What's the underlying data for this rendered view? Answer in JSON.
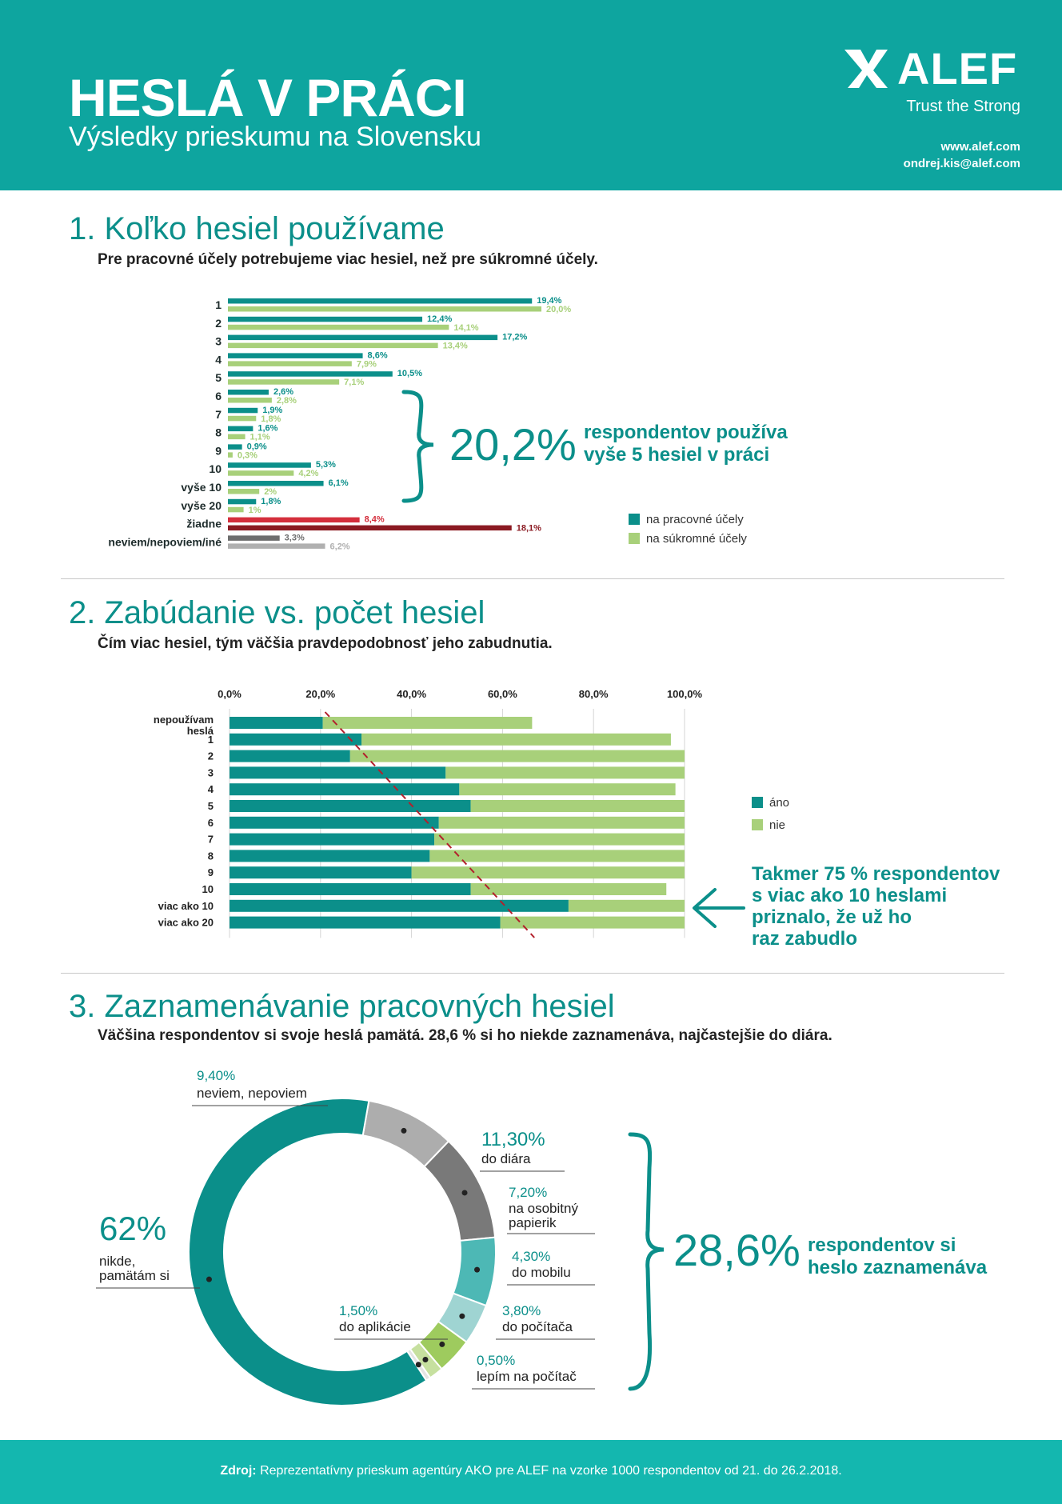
{
  "header": {
    "title": "HESLÁ V PRÁCI",
    "subtitle": "Výsledky prieskumu na Slovensku",
    "logo_text": "ALEF",
    "tagline": "Trust the Strong",
    "web": "www.alef.com",
    "email": "ondrej.kis@alef.com"
  },
  "section1": {
    "title": "1. Koľko hesiel používame",
    "subtitle": "Pre pracovné účely potrebujeme viac hesiel, než pre súkromné účely.",
    "callout_value": "20,2%",
    "callout_line1": "respondentov používa",
    "callout_line2": "vyše 5 hesiel v práci"
  },
  "section2": {
    "title": "2. Zabúdanie vs. počet hesiel",
    "subtitle": "Čím viac hesiel, tým väčšia pravdepodobnosť jeho zabudnutia.",
    "callout_lines": [
      "Takmer 75 % respondentov",
      "s viac ako 10 heslami",
      "priznalo, že už ho",
      "raz zabudlo"
    ]
  },
  "section3": {
    "title": "3. Zaznamenávanie pracovných hesiel",
    "subtitle": "Väčšina respondentov si svoje heslá pamätá. 28,6 % si ho niekde zaznamenáva, najčastejšie do diára.",
    "callout_value": "28,6%",
    "callout_line1": "respondentov si",
    "callout_line2": "heslo zaznamenáva"
  },
  "footer": {
    "label": "Zdroj:",
    "text": "Reprezentatívny prieskum agentúry AKO pre ALEF na vzorke 1000 respondentov od 21. do 26.2.2018."
  },
  "colors": {
    "teal": "#0b8f8a",
    "light_green": "#a8d07a",
    "red": "#d42e3c",
    "dark_red": "#8b1a22",
    "gray": "#6e6e6e",
    "light_gray": "#b0b0b0",
    "header": "#0ea59f"
  },
  "chart_data": [
    {
      "type": "bar",
      "orientation": "horizontal",
      "categories": [
        "1",
        "2",
        "3",
        "4",
        "5",
        "6",
        "7",
        "8",
        "9",
        "10",
        "vyše 10",
        "vyše 20",
        "žiadne",
        "neviem/nepoviem/iné"
      ],
      "series": [
        {
          "name": "na pracovné účely",
          "values": [
            19.4,
            12.4,
            17.2,
            8.6,
            10.5,
            2.6,
            1.9,
            1.6,
            0.9,
            5.3,
            6.1,
            1.8,
            8.4,
            3.3
          ],
          "labels": [
            "19,4%",
            "12,4%",
            "17,2%",
            "8,6%",
            "10,5%",
            "2,6%",
            "1,9%",
            "1,6%",
            "0,9%",
            "5,3%",
            "6,1%",
            "1,8%",
            "8,4%",
            "3,3%"
          ]
        },
        {
          "name": "na súkromné účely",
          "values": [
            20.0,
            14.1,
            13.4,
            7.9,
            7.1,
            2.8,
            1.8,
            1.1,
            0.3,
            4.2,
            2.0,
            1.0,
            18.1,
            6.2
          ],
          "labels": [
            "20,0%",
            "14,1%",
            "13,4%",
            "7,9%",
            "7,1%",
            "2,8%",
            "1,8%",
            "1,1%",
            "0,3%",
            "4,2%",
            "2%",
            "1%",
            "18,1%",
            "6,2%"
          ]
        }
      ],
      "legend": "bottom-right"
    },
    {
      "type": "bar",
      "orientation": "horizontal",
      "stacked": true,
      "categories": [
        "nepoužívam heslá",
        "1",
        "2",
        "3",
        "4",
        "5",
        "6",
        "7",
        "8",
        "9",
        "10",
        "viac ako 10",
        "viac ako 20"
      ],
      "series": [
        {
          "name": "áno",
          "values": [
            20.5,
            29,
            26.5,
            47.5,
            50.5,
            53,
            46,
            45,
            44,
            40,
            53,
            74.5,
            59.5
          ]
        },
        {
          "name": "nie",
          "values": [
            46,
            68,
            73.5,
            52.5,
            47.5,
            47,
            54,
            55,
            56,
            60,
            43,
            25.5,
            40.5
          ]
        }
      ],
      "x_ticks": [
        "0,0%",
        "20,0%",
        "40,0%",
        "60,0%",
        "80,0%",
        "100,0%"
      ],
      "xlim": [
        0,
        100
      ],
      "grid": true,
      "legend": "right"
    },
    {
      "type": "pie",
      "donut": true,
      "slices": [
        {
          "label": "neviem, nepoviem",
          "value": 9.4,
          "text": "9,40%",
          "color": "#adadad"
        },
        {
          "label": "do diára",
          "value": 11.3,
          "text": "11,30%",
          "color": "#797979"
        },
        {
          "label": "na osobitný papierik",
          "value": 7.2,
          "text": "7,20%",
          "color": "#4db8b5"
        },
        {
          "label": "do mobilu",
          "value": 4.3,
          "text": "4,30%",
          "color": "#9fd4d2"
        },
        {
          "label": "do počítača",
          "value": 3.8,
          "text": "3,80%",
          "color": "#9ecb5e"
        },
        {
          "label": "do aplikácie",
          "value": 1.5,
          "text": "1,50%",
          "color": "#c6e09f"
        },
        {
          "label": "lepím na počítač",
          "value": 0.5,
          "text": "0,50%",
          "color": "#e4e4e4"
        },
        {
          "label": "nikde, pamätám si",
          "value": 62,
          "text": "62%",
          "color": "#0b8f8a"
        }
      ]
    }
  ]
}
